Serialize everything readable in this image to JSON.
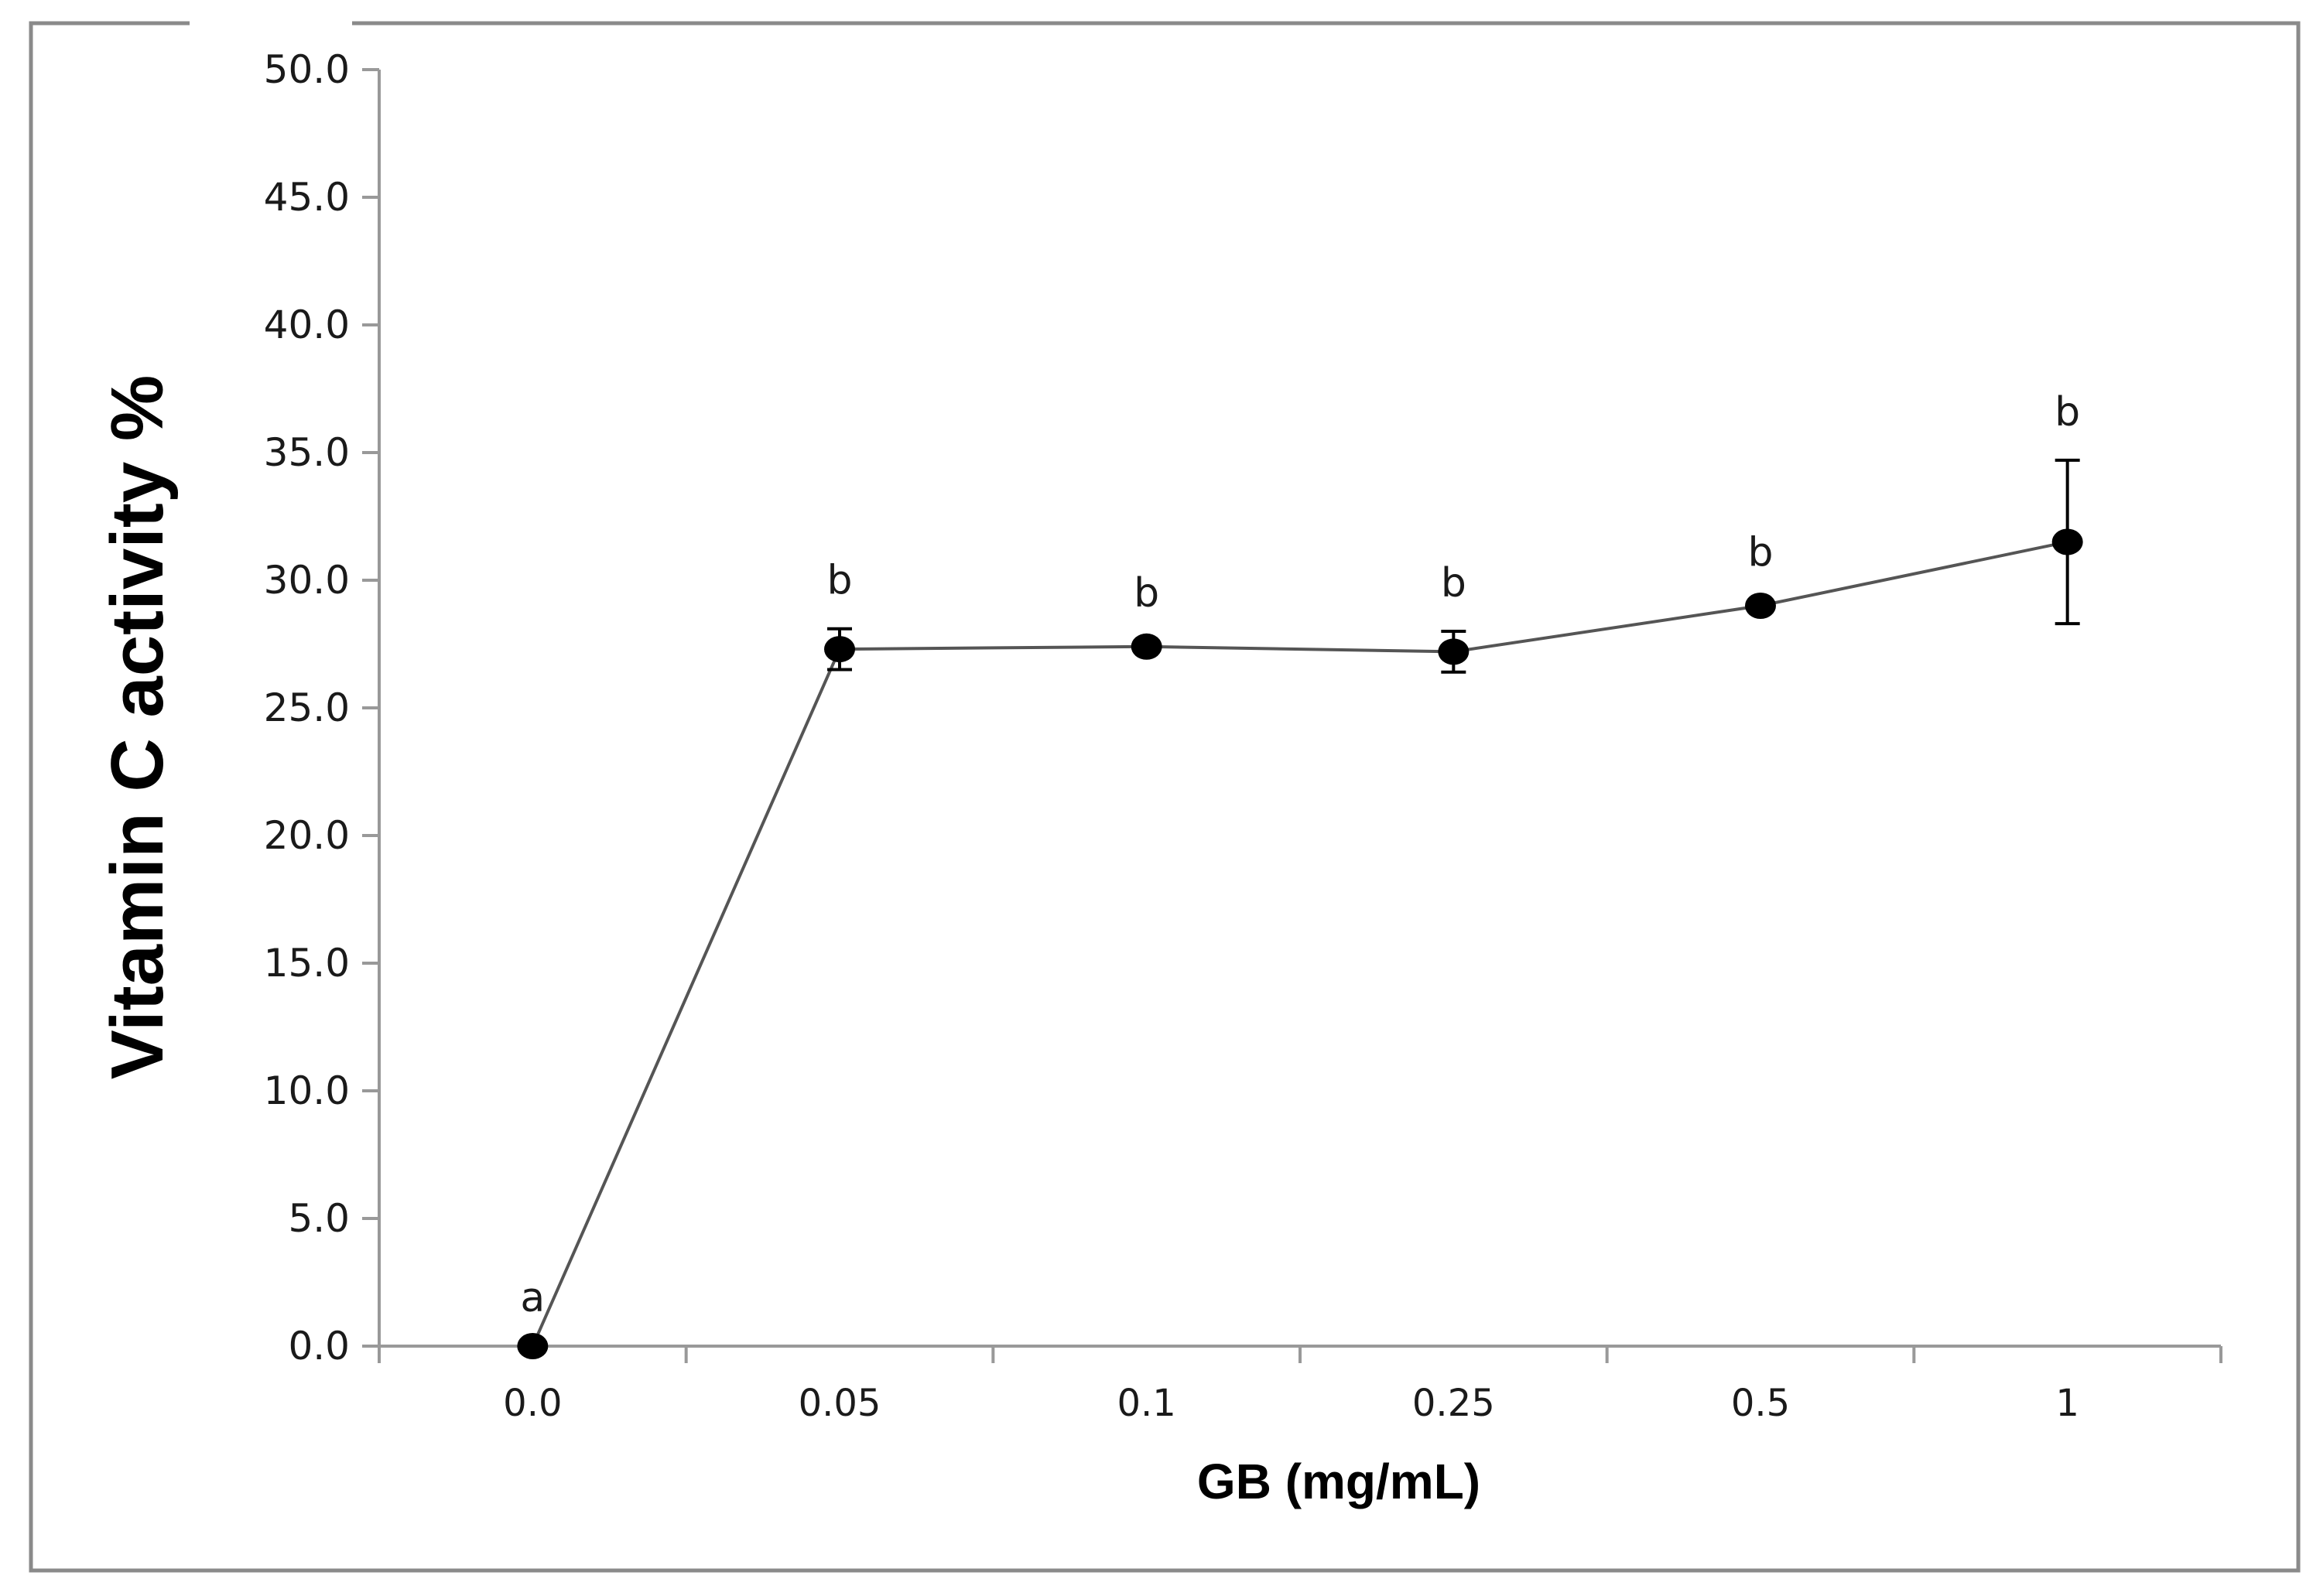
{
  "chart_data": {
    "type": "line",
    "title": "",
    "xlabel": "GB (mg/mL)",
    "ylabel": "Vitamin C activity %",
    "categories": [
      "0.0",
      "0.05",
      "0.1",
      "0.25",
      "0.5",
      "1"
    ],
    "series": [
      {
        "name": "Vitamin C activity",
        "values": [
          0.0,
          27.3,
          27.4,
          27.2,
          29.0,
          31.5
        ],
        "errors": [
          0.0,
          0.8,
          0.2,
          0.8,
          0.2,
          3.2
        ],
        "significance": [
          "a",
          "b",
          "b",
          "b",
          "b",
          "b"
        ]
      }
    ],
    "ylim": [
      0,
      50
    ],
    "yticks": [
      "0.0",
      "5.0",
      "10.0",
      "15.0",
      "20.0",
      "25.0",
      "30.0",
      "35.0",
      "40.0",
      "45.0",
      "50.0"
    ],
    "grid": false,
    "legend": "none",
    "colors": {
      "line": "#555555",
      "marker": "#000000",
      "axis": "#999999"
    }
  }
}
